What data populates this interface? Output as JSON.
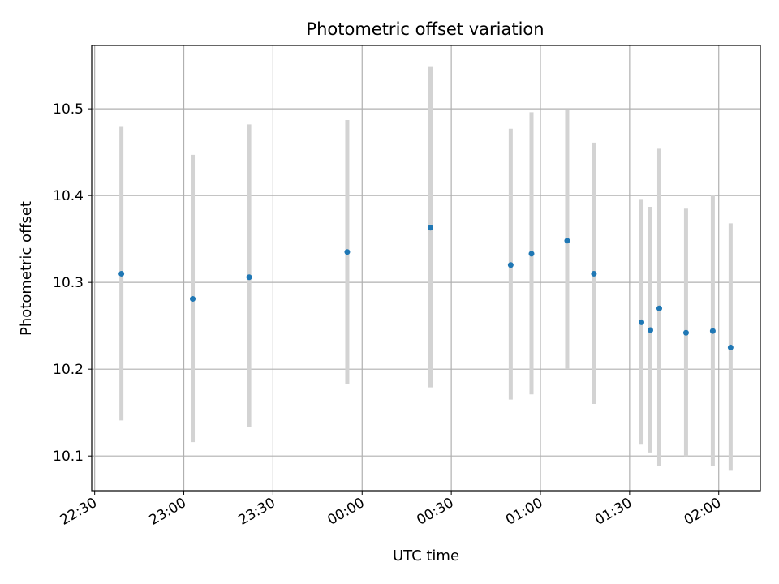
{
  "chart_data": {
    "type": "scatter",
    "title": "Photometric offset variation",
    "xlabel": "UTC time",
    "ylabel": "Photometric offset",
    "x_axis_kind": "time",
    "xlim": [
      "22:29",
      "02:14"
    ],
    "ylim": [
      10.06,
      10.573
    ],
    "xticks": [
      "22:30",
      "23:00",
      "23:30",
      "00:00",
      "00:30",
      "01:00",
      "01:30",
      "02:00"
    ],
    "yticks": [
      "10.1",
      "10.2",
      "10.3",
      "10.4",
      "10.5"
    ],
    "grid": true,
    "colors": {
      "point": "#1f77b4",
      "errorbar": "#d3d3d3",
      "grid": "#b0b0b0"
    },
    "points": [
      {
        "x": "22:39",
        "y": 10.31,
        "low": 10.141,
        "high": 10.48
      },
      {
        "x": "23:03",
        "y": 10.281,
        "low": 10.116,
        "high": 10.447
      },
      {
        "x": "23:22",
        "y": 10.306,
        "low": 10.133,
        "high": 10.482
      },
      {
        "x": "23:55",
        "y": 10.335,
        "low": 10.183,
        "high": 10.487
      },
      {
        "x": "00:23",
        "y": 10.363,
        "low": 10.179,
        "high": 10.549
      },
      {
        "x": "00:50",
        "y": 10.32,
        "low": 10.165,
        "high": 10.477
      },
      {
        "x": "00:57",
        "y": 10.333,
        "low": 10.171,
        "high": 10.496
      },
      {
        "x": "01:09",
        "y": 10.348,
        "low": 10.2,
        "high": 10.499
      },
      {
        "x": "01:18",
        "y": 10.31,
        "low": 10.16,
        "high": 10.461
      },
      {
        "x": "01:34",
        "y": 10.254,
        "low": 10.113,
        "high": 10.396
      },
      {
        "x": "01:37",
        "y": 10.245,
        "low": 10.104,
        "high": 10.387
      },
      {
        "x": "01:40",
        "y": 10.27,
        "low": 10.088,
        "high": 10.454
      },
      {
        "x": "01:49",
        "y": 10.242,
        "low": 10.1,
        "high": 10.385
      },
      {
        "x": "01:58",
        "y": 10.244,
        "low": 10.088,
        "high": 10.401
      },
      {
        "x": "02:04",
        "y": 10.225,
        "low": 10.083,
        "high": 10.368
      }
    ]
  }
}
